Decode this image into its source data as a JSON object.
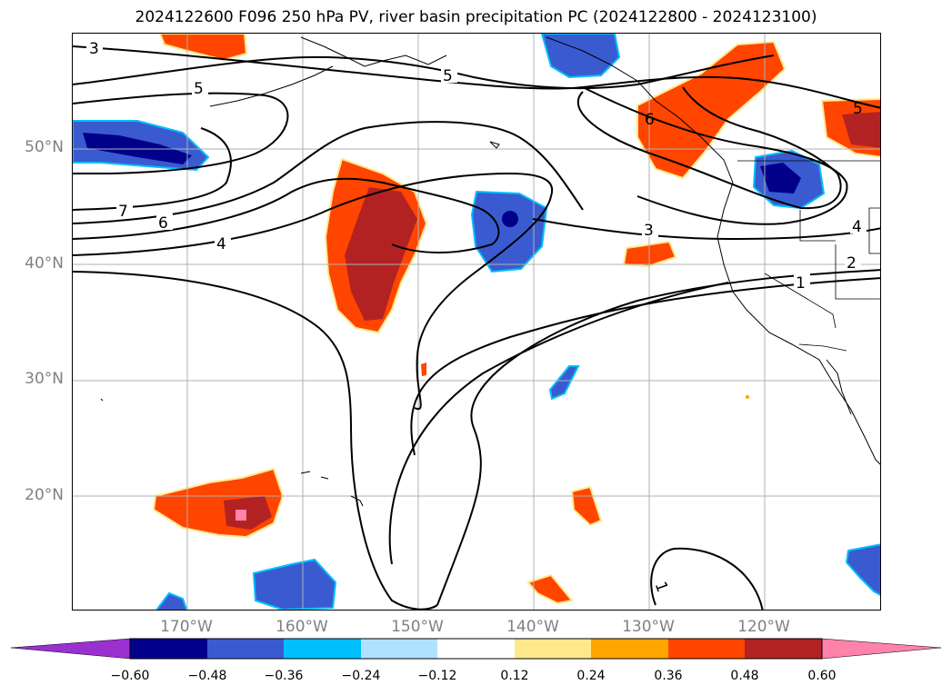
{
  "title": "2024122600 F096 250 hPa PV, river basin precipitation PC (2024122800 - 2024123100)",
  "lat_labels": [
    "50°N",
    "40°N",
    "30°N",
    "20°N"
  ],
  "lon_labels": [
    "170°W",
    "160°W",
    "150°W",
    "140°W",
    "130°W",
    "120°W"
  ],
  "contour_labels": [
    "3",
    "5",
    "5",
    "7",
    "6",
    "4",
    "6",
    "3",
    "4",
    "2",
    "1",
    "1",
    "5"
  ],
  "colorbar": {
    "ticks": [
      "−0.60",
      "−0.48",
      "−0.36",
      "−0.24",
      "−0.12",
      "0.12",
      "0.24",
      "0.36",
      "0.48",
      "0.60"
    ],
    "colors": {
      "under": "#9b30d0",
      "neg_060": "#00008b",
      "neg_048": "#3a5bd0",
      "neg_036": "#00bfff",
      "neg_024": "#b0e2ff",
      "neutral": "#ffffff",
      "pos_012": "#ffe88a",
      "pos_024": "#ffa500",
      "pos_036": "#ff4500",
      "pos_048": "#b22222",
      "over": "#ff82ab"
    }
  }
}
